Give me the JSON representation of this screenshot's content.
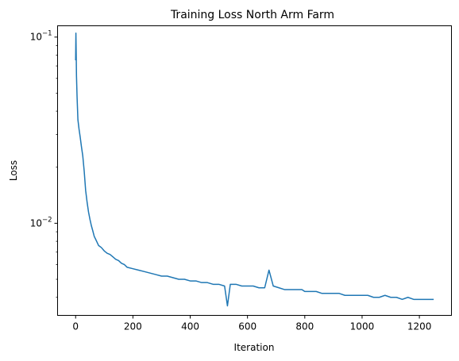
{
  "chart_data": {
    "type": "line",
    "title": "Training Loss North Arm Farm",
    "xlabel": "Iteration",
    "ylabel": "Loss",
    "xlim": [
      -63,
      1312
    ],
    "ylim": [
      0.0032,
      0.115
    ],
    "yscale": "log",
    "grid": false,
    "legend": "none",
    "xticks": [
      {
        "value": 0,
        "label": "0"
      },
      {
        "value": 200,
        "label": "200"
      },
      {
        "value": 400,
        "label": "400"
      },
      {
        "value": 600,
        "label": "600"
      },
      {
        "value": 800,
        "label": "800"
      },
      {
        "value": 1000,
        "label": "1000"
      },
      {
        "value": 1200,
        "label": "1200"
      }
    ],
    "yticks": [
      {
        "value": 0.01,
        "base": "10",
        "exponent": "−2"
      },
      {
        "value": 0.1,
        "base": "10",
        "exponent": "−1"
      }
    ],
    "series": [
      {
        "color": "#1f77b4",
        "x": [
          0,
          1,
          2,
          3,
          5,
          8,
          12,
          16,
          20,
          25,
          30,
          35,
          40,
          45,
          50,
          55,
          60,
          65,
          70,
          75,
          80,
          90,
          100,
          110,
          120,
          130,
          140,
          150,
          160,
          170,
          180,
          200,
          220,
          240,
          260,
          280,
          300,
          320,
          340,
          360,
          380,
          400,
          420,
          440,
          460,
          480,
          500,
          520,
          530,
          540,
          560,
          580,
          600,
          620,
          640,
          660,
          675,
          690,
          710,
          730,
          750,
          770,
          790,
          800,
          820,
          840,
          860,
          880,
          900,
          920,
          940,
          960,
          980,
          1000,
          1020,
          1040,
          1060,
          1080,
          1100,
          1120,
          1140,
          1160,
          1180,
          1200,
          1220,
          1240,
          1250
        ],
        "y": [
          0.075,
          0.105,
          0.082,
          0.062,
          0.048,
          0.036,
          0.032,
          0.029,
          0.026,
          0.023,
          0.019,
          0.015,
          0.013,
          0.0115,
          0.0105,
          0.0097,
          0.0091,
          0.0085,
          0.0082,
          0.0079,
          0.0076,
          0.0074,
          0.0071,
          0.0069,
          0.0068,
          0.0066,
          0.0064,
          0.0063,
          0.0061,
          0.006,
          0.0058,
          0.0057,
          0.0056,
          0.0055,
          0.0054,
          0.0053,
          0.0052,
          0.0052,
          0.0051,
          0.005,
          0.005,
          0.0049,
          0.0049,
          0.0048,
          0.0048,
          0.0047,
          0.0047,
          0.0046,
          0.0036,
          0.0047,
          0.0047,
          0.0046,
          0.0046,
          0.0046,
          0.0045,
          0.0045,
          0.0056,
          0.0046,
          0.0045,
          0.0044,
          0.0044,
          0.0044,
          0.0044,
          0.0043,
          0.0043,
          0.0043,
          0.0042,
          0.0042,
          0.0042,
          0.0042,
          0.0041,
          0.0041,
          0.0041,
          0.0041,
          0.0041,
          0.004,
          0.004,
          0.0041,
          0.004,
          0.004,
          0.0039,
          0.004,
          0.0039,
          0.0039,
          0.0039,
          0.0039,
          0.0039
        ]
      }
    ]
  }
}
